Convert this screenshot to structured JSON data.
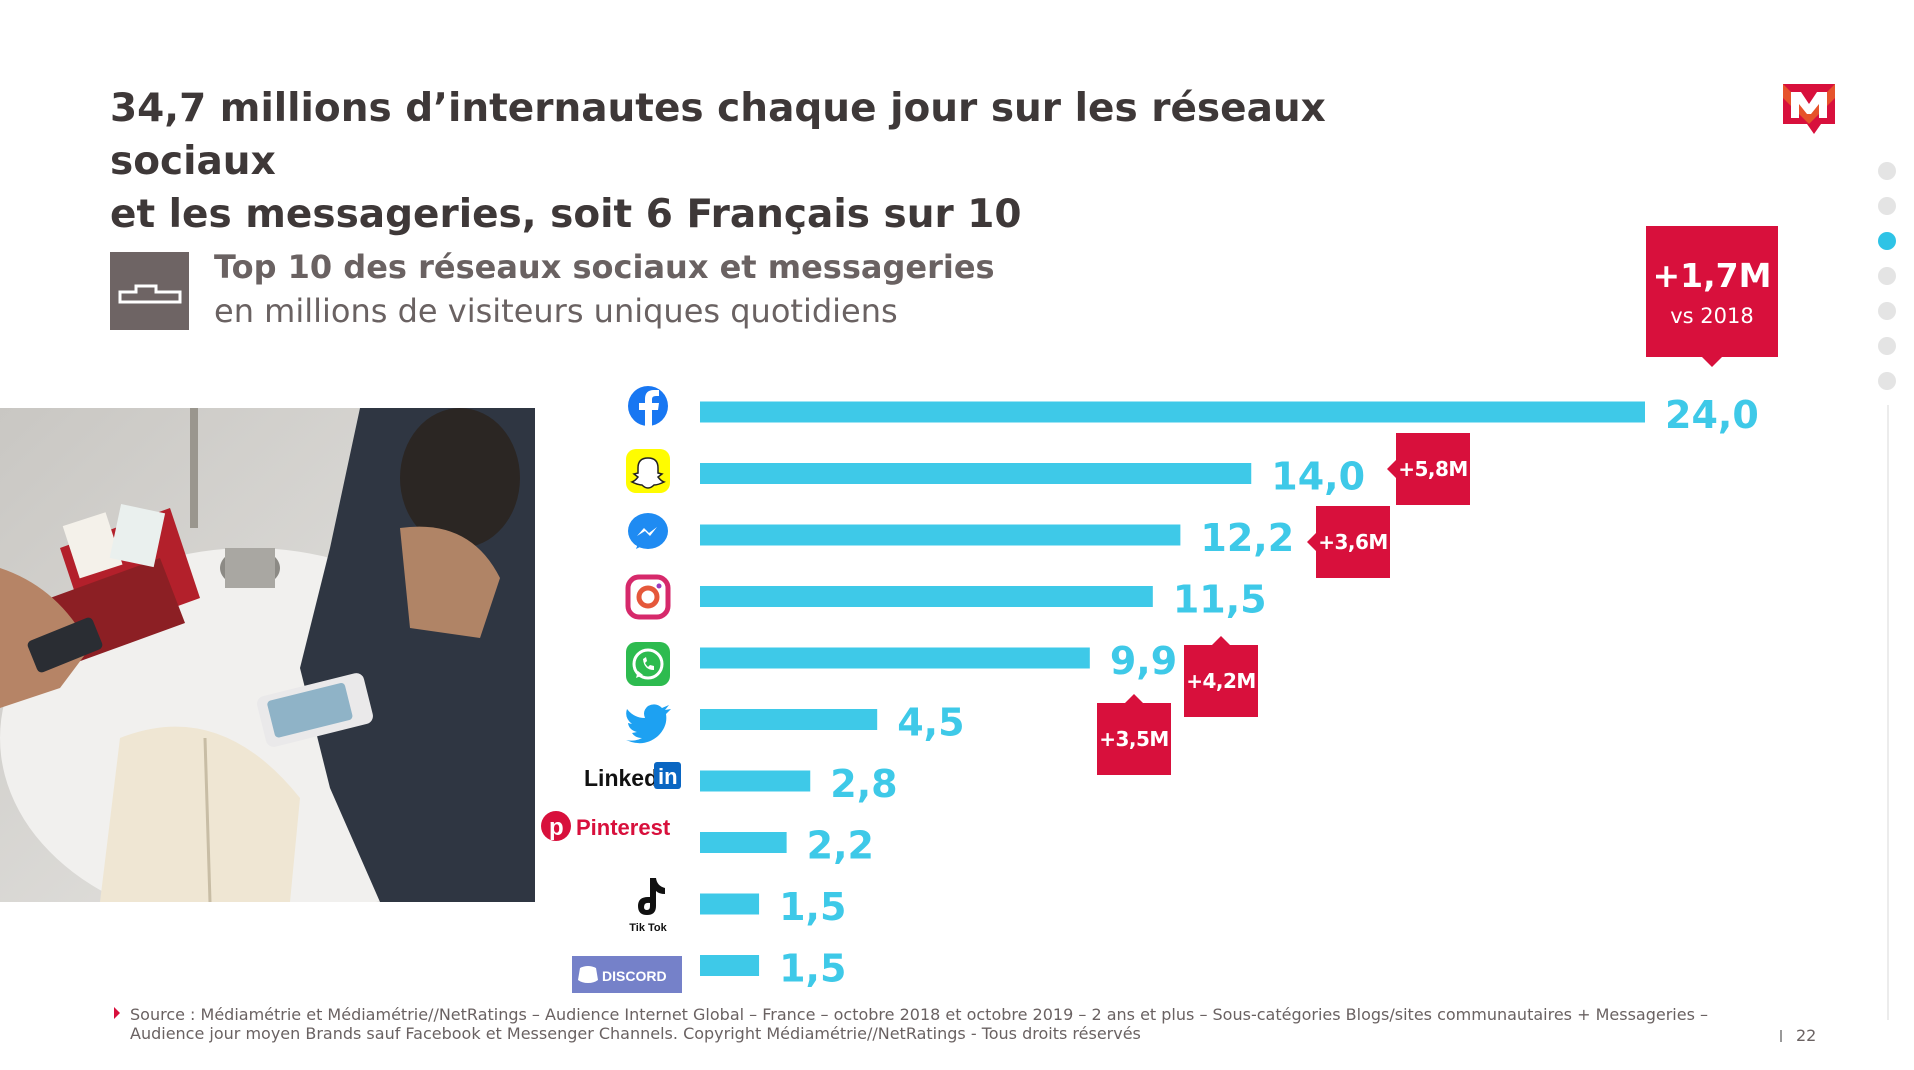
{
  "slide": {
    "title_line1": "34,7 millions d’internautes chaque jour sur les réseaux sociaux",
    "title_line2": "et les messageries, soit 6 Français sur 10",
    "subtitle": "Top 10 des réseaux sociaux et messageries",
    "subtitle_unit": "en millions de visiteurs uniques quotidiens",
    "source": "Source : Médiamétrie et Médiamétrie//NetRatings – Audience Internet Global – France – octobre 2018 et octobre 2019 – 2 ans et plus – Sous-catégories Blogs/sites communautaires + Messageries – Audience jour moyen Brands sauf Facebook et Messenger Channels. Copyright Médiamétrie//NetRatings - Tous droits réservés",
    "page_number": "22",
    "accent_color": "#d8103c",
    "bar_color": "#3ec9e8",
    "nav_dots_count": 7,
    "nav_dot_active_index": 2
  },
  "badges": {
    "total_value": "+1,7M",
    "total_compare": "vs 2018",
    "snapchat": "+5,8M",
    "messenger": "+3,6M",
    "whatsapp": "+4,2M",
    "twitter": "+3,5M"
  },
  "platform_labels": {
    "linkedin": "Linked",
    "linkedin_in": "in",
    "pinterest": "Pinterest",
    "tiktok": "Tik Tok",
    "discord": "DISCORD"
  },
  "chart_data": {
    "type": "bar",
    "orientation": "horizontal",
    "title": "Top 10 des réseaux sociaux et messageries",
    "subtitle": "en millions de visiteurs uniques quotidiens",
    "categories": [
      "Facebook",
      "Snapchat",
      "Messenger",
      "Instagram",
      "WhatsApp",
      "Twitter",
      "LinkedIn",
      "Pinterest",
      "TikTok",
      "Discord"
    ],
    "values": [
      24.0,
      14.0,
      12.2,
      11.5,
      9.9,
      4.5,
      2.8,
      2.2,
      1.5,
      1.5
    ],
    "value_labels": [
      "24,0",
      "14,0",
      "12,2",
      "11,5",
      "9,9",
      "4,5",
      "2,8",
      "2,2",
      "1,5",
      "1,5"
    ],
    "icons": [
      "facebook-icon",
      "snapchat-icon",
      "messenger-icon",
      "instagram-icon",
      "whatsapp-icon",
      "twitter-icon",
      "linkedin-logo",
      "pinterest-logo",
      "tiktok-logo",
      "discord-logo"
    ],
    "xlim": [
      0,
      24
    ],
    "grid": false
  }
}
